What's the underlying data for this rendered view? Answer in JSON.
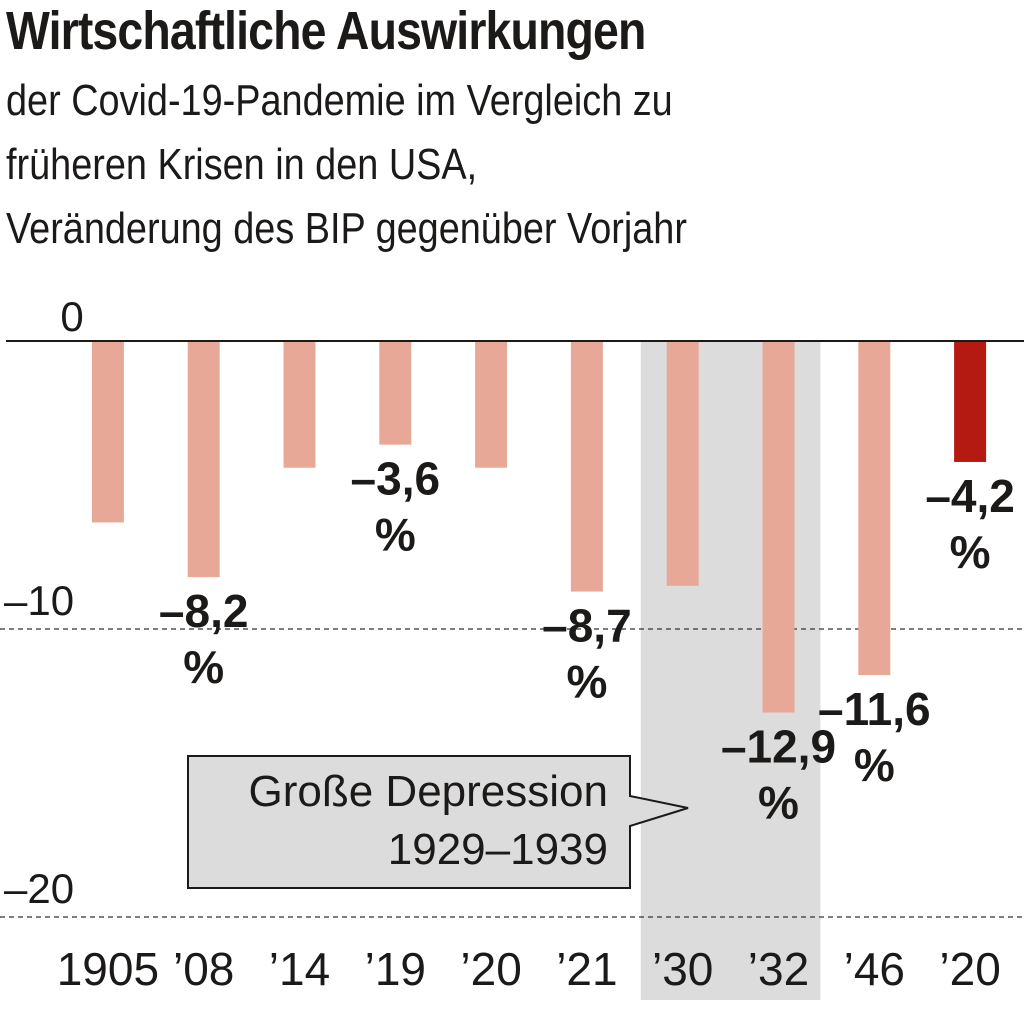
{
  "title": "Wirtschaftliche Auswirkungen",
  "subtitle_lines": [
    "der Covid-19-Pandemie im Vergleich zu",
    "früheren Krisen in den USA,",
    "Veränderung des BIP gegenüber Vorjahr"
  ],
  "chart_data": {
    "type": "bar",
    "title": "Wirtschaftliche Auswirkungen",
    "subtitle": "der Covid-19-Pandemie im Vergleich zu früheren Krisen in den USA, Veränderung des BIP gegenüber Vorjahr",
    "xlabel": "",
    "ylabel": "",
    "categories": [
      "1905",
      "’08",
      "’14",
      "’19",
      "’20",
      "’21",
      "’30",
      "’32",
      "’46",
      "’20"
    ],
    "values": [
      -6.3,
      -8.2,
      -4.4,
      -3.6,
      -4.4,
      -8.7,
      -8.5,
      -12.9,
      -11.6,
      -4.2
    ],
    "data_labels": [
      null,
      [
        "–8,2",
        "%"
      ],
      null,
      [
        "–3,6",
        "%"
      ],
      null,
      [
        "–8,7",
        "%"
      ],
      null,
      [
        "–12,9",
        "%"
      ],
      [
        "–11,6",
        "%"
      ],
      [
        "–4,2",
        "%"
      ]
    ],
    "highlight_index": 9,
    "ylim": [
      -22.5,
      0
    ],
    "yticks": [
      {
        "value": 0,
        "label": "0"
      },
      {
        "value": -10,
        "label": "–10"
      },
      {
        "value": -20,
        "label": "–20"
      }
    ],
    "grid": "dashed at -10 and -20",
    "colors": {
      "bar": "#e8a898",
      "highlight": "#b51a12",
      "shading": "#dcdcdc",
      "text": "#1c1a19"
    },
    "shaded_period": {
      "from_index": 6,
      "to_index": 7,
      "label_lines": [
        "Große Depression",
        "1929–1939"
      ]
    }
  }
}
